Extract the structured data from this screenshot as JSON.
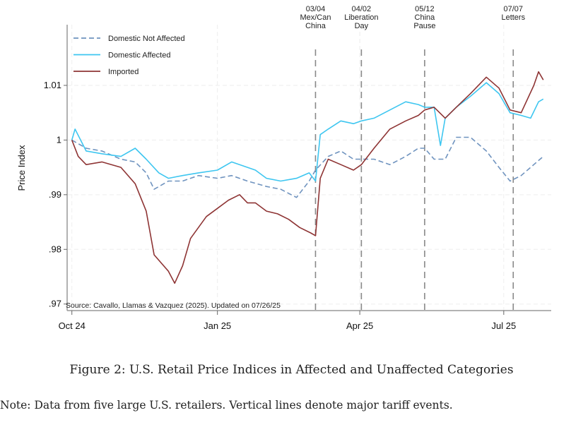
{
  "figure": {
    "caption": "Figure 2: U.S. Retail Price Indices in Affected and Unaffected Categories",
    "note": "Note: Data from five large U.S. retailers. Vertical lines denote major tariff events."
  },
  "chart_data": {
    "type": "line",
    "title": "",
    "xlabel": "",
    "ylabel": "Price Index",
    "xlim": [
      "2024-09-28",
      "2025-07-31"
    ],
    "ylim": [
      0.9688,
      1.0211
    ],
    "x_ticks": [
      {
        "date": "2024-10-01",
        "label": "Oct 24"
      },
      {
        "date": "2025-01-01",
        "label": "Jan 25"
      },
      {
        "date": "2025-04-01",
        "label": "Apr 25"
      },
      {
        "date": "2025-07-01",
        "label": "Jul 25"
      }
    ],
    "y_ticks": [
      {
        "value": 0.97,
        "label": ".97"
      },
      {
        "value": 0.98,
        "label": ".98"
      },
      {
        "value": 0.99,
        "label": ".99"
      },
      {
        "value": 1.0,
        "label": "1"
      },
      {
        "value": 1.01,
        "label": "1.01"
      }
    ],
    "grid": true,
    "legend_position": "top-left",
    "source_note": "Source: Cavallo, Llamas & Vazquez (2025). Updated on 07/26/25",
    "events": [
      {
        "date": "2025-03-04",
        "lines": [
          "03/04",
          "Mex/Can",
          "China"
        ]
      },
      {
        "date": "2025-04-02",
        "lines": [
          "04/02",
          "Liberation",
          "Day"
        ]
      },
      {
        "date": "2025-05-12",
        "lines": [
          "05/12",
          "China",
          "Pause"
        ]
      },
      {
        "date": "2025-07-07",
        "lines": [
          "07/07",
          "Letters"
        ]
      }
    ],
    "series": [
      {
        "name": "Domestic Not Affected",
        "color": "#6f93bf",
        "style": "dashed",
        "points": [
          [
            "2024-10-01",
            1.0
          ],
          [
            "2024-10-10",
            0.9985
          ],
          [
            "2024-10-20",
            0.998
          ],
          [
            "2024-11-01",
            0.9965
          ],
          [
            "2024-11-10",
            0.996
          ],
          [
            "2024-11-17",
            0.994
          ],
          [
            "2024-11-22",
            0.991
          ],
          [
            "2024-12-01",
            0.9925
          ],
          [
            "2024-12-10",
            0.9925
          ],
          [
            "2024-12-20",
            0.9935
          ],
          [
            "2025-01-01",
            0.993
          ],
          [
            "2025-01-10",
            0.9935
          ],
          [
            "2025-01-20",
            0.9925
          ],
          [
            "2025-02-01",
            0.9915
          ],
          [
            "2025-02-10",
            0.991
          ],
          [
            "2025-02-20",
            0.9895
          ],
          [
            "2025-02-28",
            0.9925
          ],
          [
            "2025-03-04",
            0.9945
          ],
          [
            "2025-03-12",
            0.997
          ],
          [
            "2025-03-20",
            0.998
          ],
          [
            "2025-03-28",
            0.9965
          ],
          [
            "2025-04-02",
            0.9965
          ],
          [
            "2025-04-10",
            0.9965
          ],
          [
            "2025-04-20",
            0.9955
          ],
          [
            "2025-04-30",
            0.997
          ],
          [
            "2025-05-08",
            0.9985
          ],
          [
            "2025-05-12",
            0.9985
          ],
          [
            "2025-05-18",
            0.9965
          ],
          [
            "2025-05-25",
            0.9965
          ],
          [
            "2025-06-01",
            1.0005
          ],
          [
            "2025-06-10",
            1.0005
          ],
          [
            "2025-06-20",
            0.998
          ],
          [
            "2025-06-28",
            0.995
          ],
          [
            "2025-07-05",
            0.9925
          ],
          [
            "2025-07-12",
            0.9935
          ],
          [
            "2025-07-20",
            0.9955
          ],
          [
            "2025-07-26",
            0.997
          ]
        ]
      },
      {
        "name": "Domestic Affected",
        "color": "#3ec6f0",
        "style": "solid",
        "points": [
          [
            "2024-10-01",
            1.0
          ],
          [
            "2024-10-03",
            1.002
          ],
          [
            "2024-10-10",
            0.998
          ],
          [
            "2024-10-20",
            0.9975
          ],
          [
            "2024-11-01",
            0.997
          ],
          [
            "2024-11-10",
            0.9985
          ],
          [
            "2024-11-17",
            0.9965
          ],
          [
            "2024-11-25",
            0.994
          ],
          [
            "2024-12-01",
            0.993
          ],
          [
            "2024-12-10",
            0.9935
          ],
          [
            "2024-12-20",
            0.994
          ],
          [
            "2025-01-01",
            0.9945
          ],
          [
            "2025-01-10",
            0.996
          ],
          [
            "2025-01-15",
            0.9955
          ],
          [
            "2025-01-25",
            0.9945
          ],
          [
            "2025-02-01",
            0.993
          ],
          [
            "2025-02-10",
            0.9925
          ],
          [
            "2025-02-20",
            0.993
          ],
          [
            "2025-02-28",
            0.994
          ],
          [
            "2025-03-04",
            0.9925
          ],
          [
            "2025-03-07",
            1.001
          ],
          [
            "2025-03-12",
            1.002
          ],
          [
            "2025-03-20",
            1.0035
          ],
          [
            "2025-03-28",
            1.003
          ],
          [
            "2025-04-02",
            1.0035
          ],
          [
            "2025-04-10",
            1.004
          ],
          [
            "2025-04-20",
            1.0055
          ],
          [
            "2025-04-30",
            1.007
          ],
          [
            "2025-05-08",
            1.0065
          ],
          [
            "2025-05-12",
            1.006
          ],
          [
            "2025-05-18",
            1.006
          ],
          [
            "2025-05-22",
            0.999
          ],
          [
            "2025-05-25",
            1.004
          ],
          [
            "2025-06-01",
            1.006
          ],
          [
            "2025-06-10",
            1.008
          ],
          [
            "2025-06-20",
            1.0105
          ],
          [
            "2025-06-28",
            1.0085
          ],
          [
            "2025-07-05",
            1.005
          ],
          [
            "2025-07-12",
            1.0045
          ],
          [
            "2025-07-18",
            1.004
          ],
          [
            "2025-07-23",
            1.007
          ],
          [
            "2025-07-26",
            1.0075
          ]
        ]
      },
      {
        "name": "Imported",
        "color": "#8e3434",
        "style": "solid",
        "points": [
          [
            "2024-10-01",
            1.0
          ],
          [
            "2024-10-05",
            0.997
          ],
          [
            "2024-10-10",
            0.9955
          ],
          [
            "2024-10-20",
            0.996
          ],
          [
            "2024-11-01",
            0.995
          ],
          [
            "2024-11-10",
            0.992
          ],
          [
            "2024-11-17",
            0.987
          ],
          [
            "2024-11-22",
            0.979
          ],
          [
            "2024-12-01",
            0.976
          ],
          [
            "2024-12-05",
            0.9738
          ],
          [
            "2024-12-10",
            0.977
          ],
          [
            "2024-12-15",
            0.982
          ],
          [
            "2024-12-20",
            0.984
          ],
          [
            "2024-12-25",
            0.986
          ],
          [
            "2025-01-01",
            0.9875
          ],
          [
            "2025-01-08",
            0.989
          ],
          [
            "2025-01-15",
            0.99
          ],
          [
            "2025-01-20",
            0.9885
          ],
          [
            "2025-01-25",
            0.9885
          ],
          [
            "2025-02-01",
            0.987
          ],
          [
            "2025-02-08",
            0.9865
          ],
          [
            "2025-02-15",
            0.9855
          ],
          [
            "2025-02-22",
            0.984
          ],
          [
            "2025-03-01",
            0.983
          ],
          [
            "2025-03-04",
            0.9825
          ],
          [
            "2025-03-07",
            0.993
          ],
          [
            "2025-03-12",
            0.9965
          ],
          [
            "2025-03-20",
            0.9955
          ],
          [
            "2025-03-28",
            0.9945
          ],
          [
            "2025-04-02",
            0.9955
          ],
          [
            "2025-04-10",
            0.9985
          ],
          [
            "2025-04-20",
            1.002
          ],
          [
            "2025-04-30",
            1.0035
          ],
          [
            "2025-05-08",
            1.0045
          ],
          [
            "2025-05-12",
            1.0055
          ],
          [
            "2025-05-18",
            1.006
          ],
          [
            "2025-05-25",
            1.004
          ],
          [
            "2025-06-01",
            1.006
          ],
          [
            "2025-06-10",
            1.0085
          ],
          [
            "2025-06-20",
            1.0115
          ],
          [
            "2025-06-28",
            1.0095
          ],
          [
            "2025-07-05",
            1.0055
          ],
          [
            "2025-07-12",
            1.005
          ],
          [
            "2025-07-20",
            1.01
          ],
          [
            "2025-07-23",
            1.0125
          ],
          [
            "2025-07-26",
            1.011
          ]
        ]
      }
    ]
  }
}
